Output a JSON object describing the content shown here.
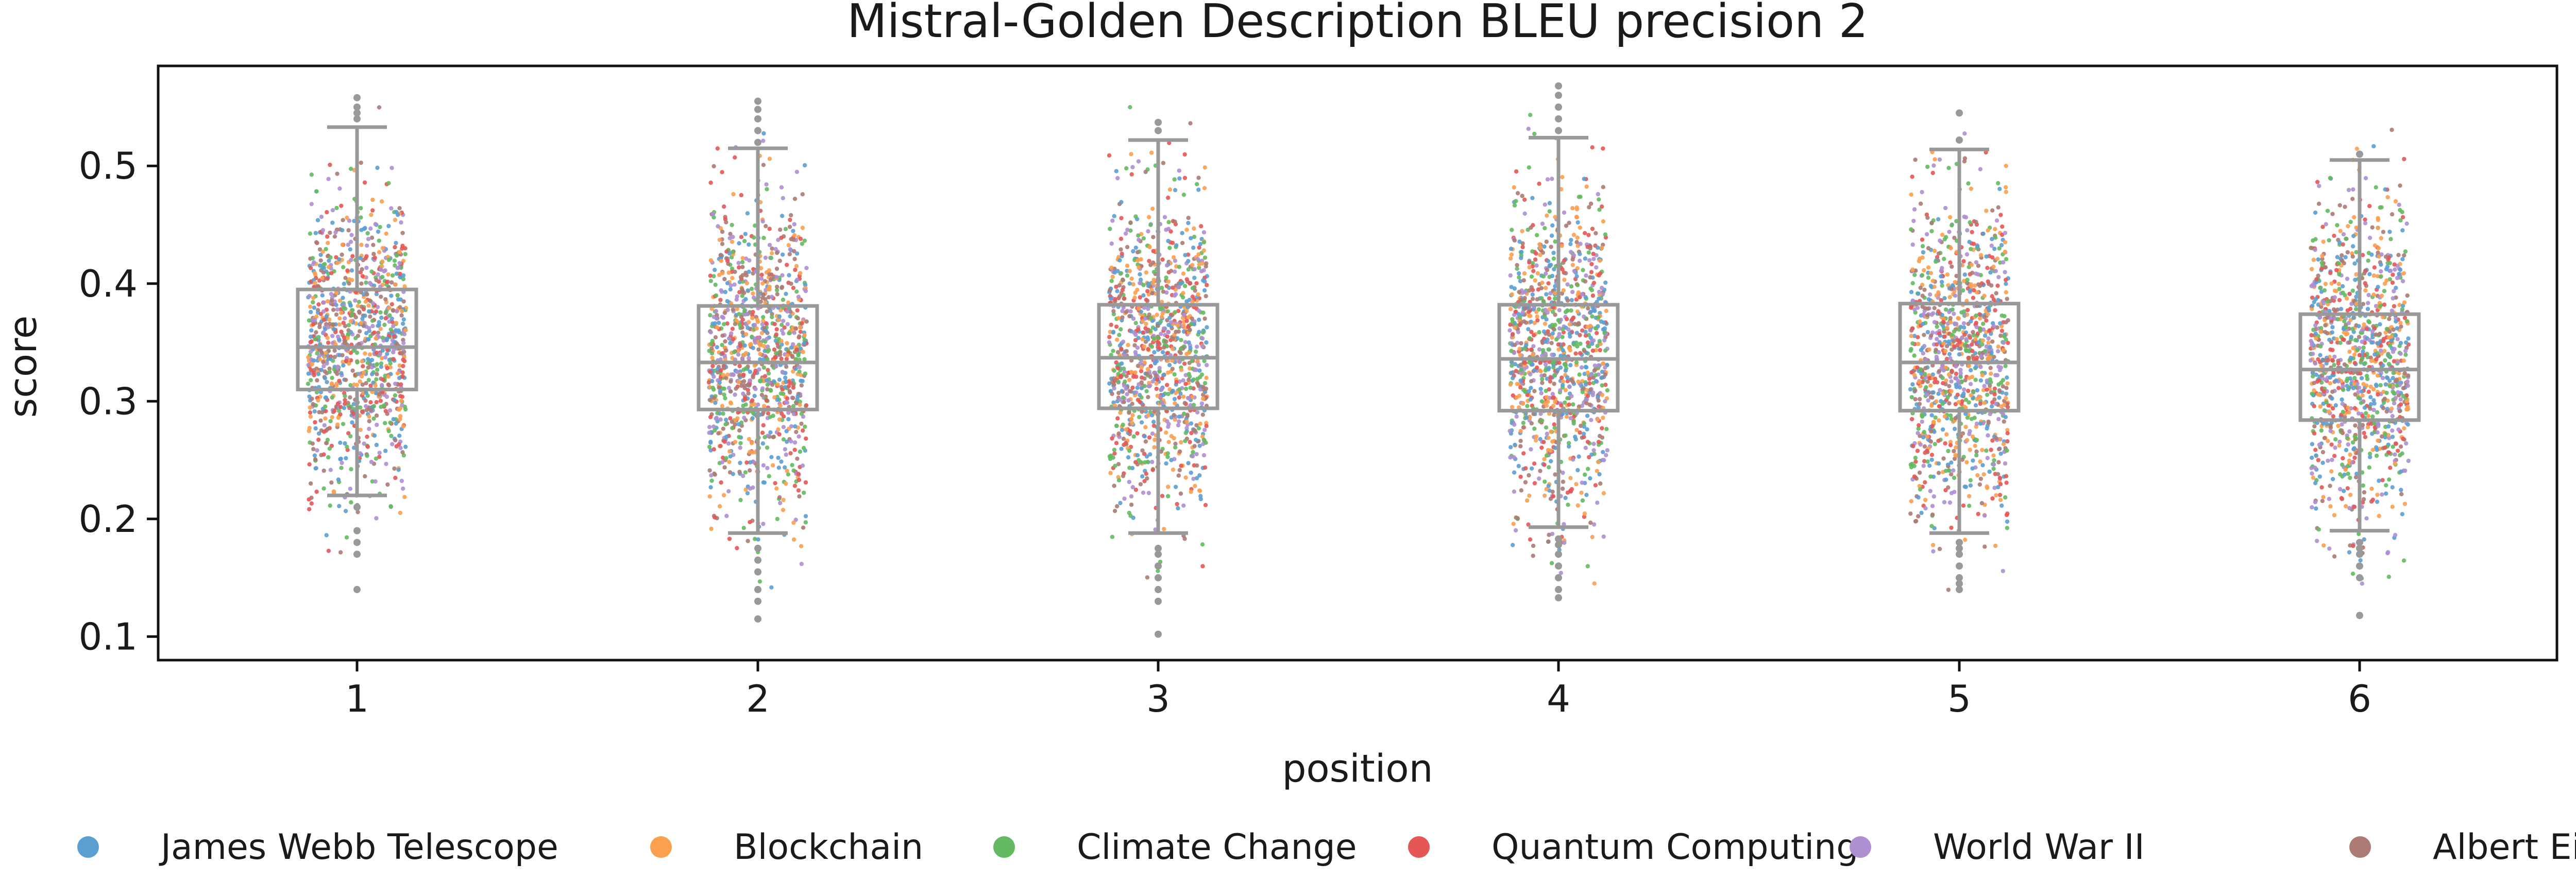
{
  "chart_data": {
    "type": "box-strip",
    "title": "Mistral-Golden Description BLEU precision 2",
    "xlabel": "position",
    "ylabel": "score",
    "categories": [
      "1",
      "2",
      "3",
      "4",
      "5",
      "6"
    ],
    "ylim": [
      0.08,
      0.585
    ],
    "yticks": [
      0.1,
      0.2,
      0.3,
      0.4,
      0.5
    ],
    "ytick_labels": [
      "0.1",
      "0.2",
      "0.3",
      "0.4",
      "0.5"
    ],
    "boxes": [
      {
        "category": "1",
        "whisker_low": 0.22,
        "q1": 0.31,
        "median": 0.346,
        "q3": 0.395,
        "whisker_high": 0.533,
        "outliers": [
          0.14,
          0.17,
          0.18,
          0.19,
          0.21,
          0.54,
          0.545,
          0.55,
          0.558
        ]
      },
      {
        "category": "2",
        "whisker_low": 0.188,
        "q1": 0.293,
        "median": 0.333,
        "q3": 0.381,
        "whisker_high": 0.515,
        "outliers": [
          0.115,
          0.13,
          0.14,
          0.155,
          0.165,
          0.175,
          0.52,
          0.53,
          0.54,
          0.548,
          0.555
        ]
      },
      {
        "category": "3",
        "whisker_low": 0.188,
        "q1": 0.294,
        "median": 0.337,
        "q3": 0.382,
        "whisker_high": 0.522,
        "outliers": [
          0.102,
          0.13,
          0.14,
          0.15,
          0.16,
          0.17,
          0.175,
          0.53,
          0.537
        ]
      },
      {
        "category": "4",
        "whisker_low": 0.193,
        "q1": 0.292,
        "median": 0.336,
        "q3": 0.382,
        "whisker_high": 0.524,
        "outliers": [
          0.133,
          0.14,
          0.15,
          0.16,
          0.17,
          0.178,
          0.183,
          0.53,
          0.54,
          0.55,
          0.56,
          0.568
        ]
      },
      {
        "category": "5",
        "whisker_low": 0.188,
        "q1": 0.292,
        "median": 0.333,
        "q3": 0.383,
        "whisker_high": 0.514,
        "outliers": [
          0.14,
          0.145,
          0.15,
          0.16,
          0.17,
          0.175,
          0.18,
          0.522,
          0.545
        ]
      },
      {
        "category": "6",
        "whisker_low": 0.19,
        "q1": 0.284,
        "median": 0.327,
        "q3": 0.374,
        "whisker_high": 0.505,
        "outliers": [
          0.118,
          0.15,
          0.16,
          0.17,
          0.175,
          0.18,
          0.51
        ]
      }
    ],
    "series": [
      {
        "name": "James Webb Telescope",
        "color": "#5b9fd0"
      },
      {
        "name": "Blockchain",
        "color": "#fba04f"
      },
      {
        "name": "Climate Change",
        "color": "#63ba60"
      },
      {
        "name": "Quantum Computing",
        "color": "#e45756"
      },
      {
        "name": "World War II",
        "color": "#ad8fd2"
      },
      {
        "name": "Albert Einstein",
        "color": "#ab7b74"
      }
    ],
    "legend_position": "bottom",
    "box_color": "#999999",
    "grid": false
  }
}
